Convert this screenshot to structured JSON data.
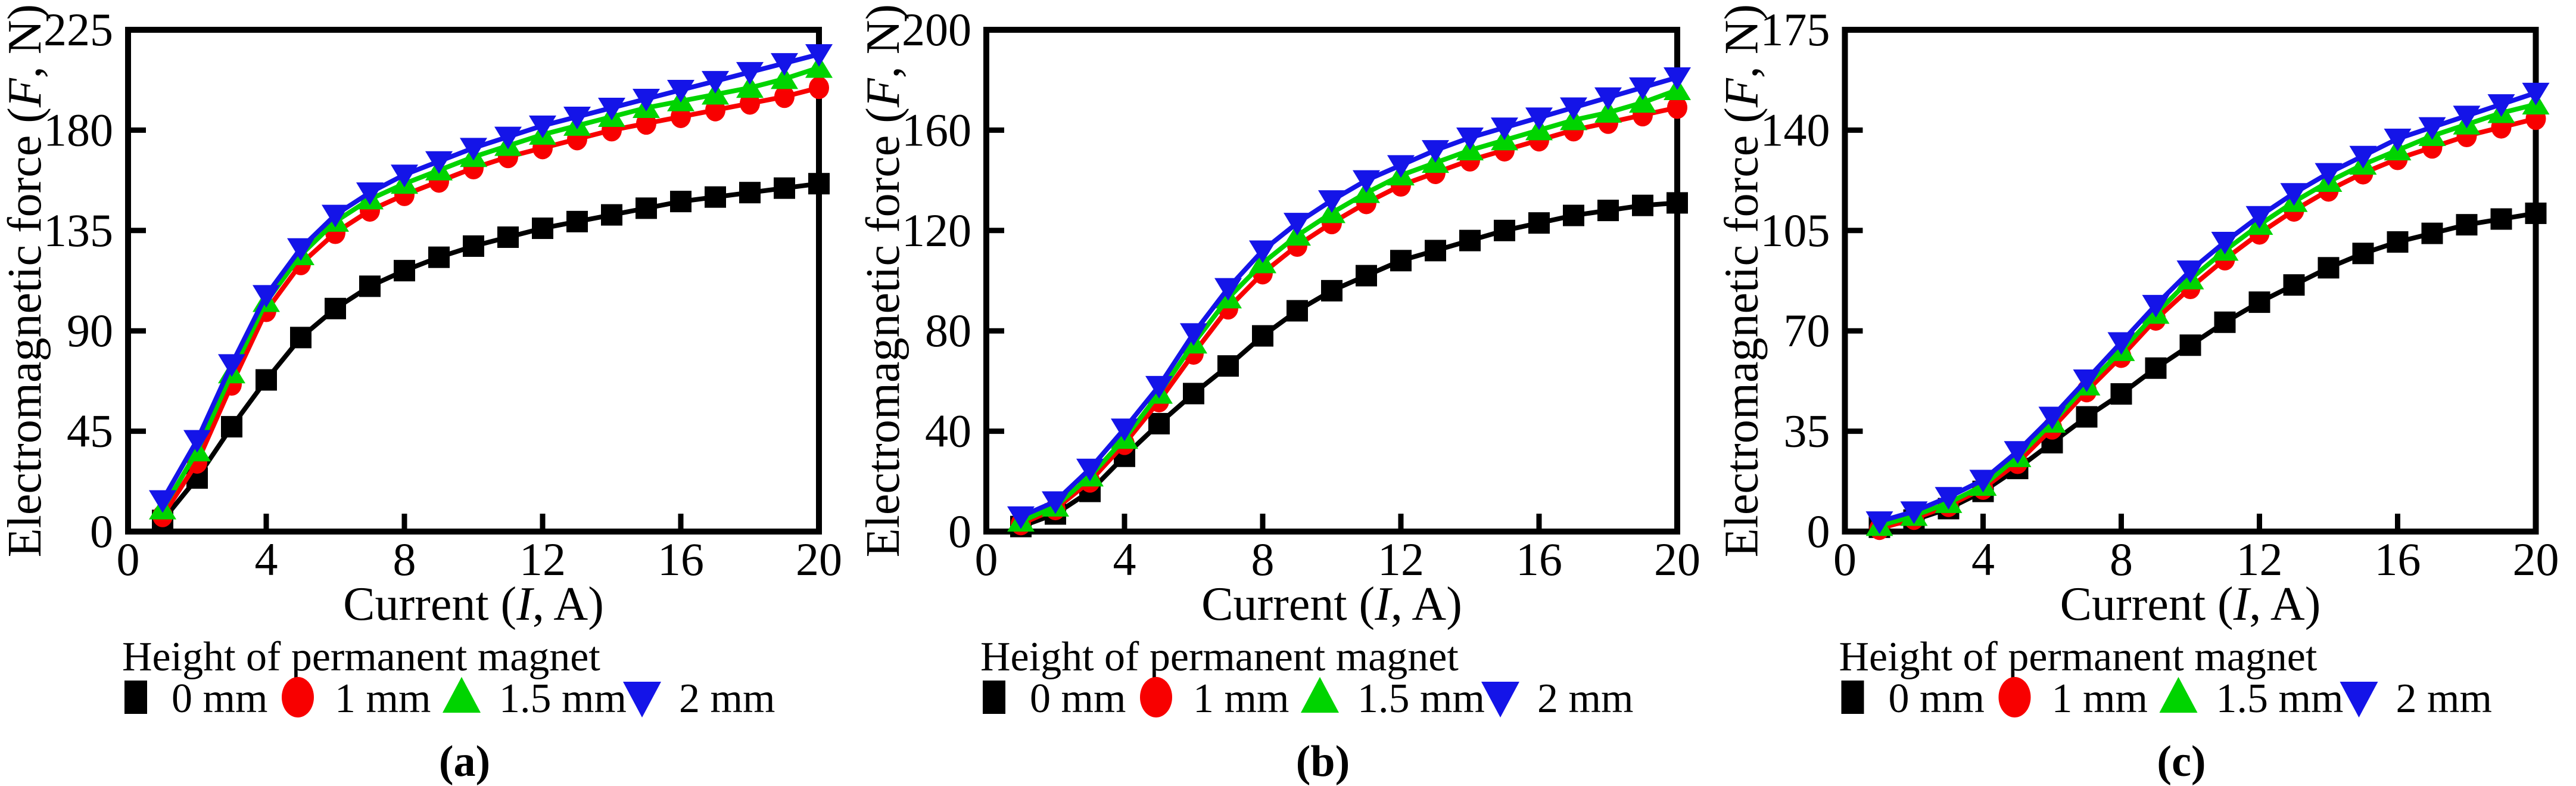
{
  "figure": {
    "ylabel": {
      "prefix": "Electromagnetic force (",
      "italic": "F",
      "suffix": ", N)"
    },
    "xlabel": {
      "prefix": "Current (",
      "italic": "I",
      "suffix": ", A)"
    },
    "legend": {
      "title": "Height of permanent magnet",
      "entries": [
        {
          "label": "0 mm",
          "marker": "square",
          "color": "#000000"
        },
        {
          "label": "1 mm",
          "marker": "circle",
          "color": "#F80000"
        },
        {
          "label": "1.5 mm",
          "marker": "triangle-up",
          "color": "#00D400"
        },
        {
          "label": "2 mm",
          "marker": "triangle-down",
          "color": "#1414E8"
        }
      ]
    },
    "background_color": "#ffffff",
    "axis_color": "#000000"
  },
  "chart_data": [
    {
      "type": "line",
      "caption": "(a)",
      "xlabel": "Current (I, A)",
      "ylabel": "Electromagnetic force (F, N)",
      "xlim": [
        0,
        20
      ],
      "ylim": [
        0,
        225
      ],
      "xticks": [
        0,
        4,
        8,
        12,
        16,
        20
      ],
      "yticks": [
        0,
        45,
        90,
        135,
        180,
        225
      ],
      "grid": false,
      "legend_position": "below",
      "x": [
        1,
        2,
        3,
        4,
        5,
        6,
        7,
        8,
        9,
        10,
        11,
        12,
        13,
        14,
        15,
        16,
        17,
        18,
        19,
        20
      ],
      "series": [
        {
          "name": "0 mm",
          "marker": "square",
          "color": "#000000",
          "values": [
            5,
            24,
            47,
            68,
            87,
            100,
            110,
            117,
            123,
            128,
            132,
            136,
            139,
            142,
            145,
            148,
            150,
            152,
            154,
            156
          ]
        },
        {
          "name": "1 mm",
          "marker": "circle",
          "color": "#F80000",
          "values": [
            7,
            31,
            66,
            99,
            120,
            134,
            144,
            151,
            157,
            163,
            168,
            172,
            176,
            180,
            183,
            186,
            189,
            192,
            195,
            199
          ]
        },
        {
          "name": "1.5 mm",
          "marker": "triangle-up",
          "color": "#00D400",
          "values": [
            10,
            36,
            71,
            103,
            124,
            139,
            149,
            156,
            162,
            168,
            173,
            178,
            182,
            186,
            190,
            193,
            196,
            199,
            203,
            208
          ]
        },
        {
          "name": "2 mm",
          "marker": "triangle-down",
          "color": "#1414E8",
          "values": [
            14,
            41,
            75,
            106,
            127,
            142,
            152,
            160,
            166,
            172,
            177,
            182,
            186,
            190,
            194,
            198,
            202,
            206,
            210,
            214
          ]
        }
      ]
    },
    {
      "type": "line",
      "caption": "(b)",
      "xlabel": "Current (I, A)",
      "ylabel": "Electromagnetic force (F, N)",
      "xlim": [
        0,
        20
      ],
      "ylim": [
        0,
        200
      ],
      "xticks": [
        0,
        4,
        8,
        12,
        16,
        20
      ],
      "yticks": [
        0,
        40,
        80,
        120,
        160,
        200
      ],
      "grid": false,
      "legend_position": "below",
      "x": [
        1,
        2,
        3,
        4,
        5,
        6,
        7,
        8,
        9,
        10,
        11,
        12,
        13,
        14,
        15,
        16,
        17,
        18,
        19,
        20
      ],
      "series": [
        {
          "name": "0 mm",
          "marker": "square",
          "color": "#000000",
          "values": [
            2,
            7,
            16,
            30,
            43,
            55,
            66,
            78,
            88,
            96,
            102,
            108,
            112,
            116,
            120,
            123,
            126,
            128,
            130,
            131
          ]
        },
        {
          "name": "1 mm",
          "marker": "circle",
          "color": "#F80000",
          "values": [
            3,
            9,
            20,
            35,
            52,
            71,
            89,
            103,
            114,
            123,
            131,
            138,
            143,
            148,
            152,
            156,
            160,
            163,
            166,
            169
          ]
        },
        {
          "name": "1.5 mm",
          "marker": "triangle-up",
          "color": "#00D400",
          "values": [
            4,
            10,
            22,
            37,
            55,
            75,
            93,
            107,
            118,
            127,
            135,
            142,
            147,
            152,
            156,
            160,
            164,
            167,
            171,
            176
          ]
        },
        {
          "name": "2 mm",
          "marker": "triangle-down",
          "color": "#1414E8",
          "values": [
            6,
            12,
            25,
            41,
            58,
            79,
            97,
            112,
            123,
            132,
            140,
            146,
            152,
            157,
            161,
            165,
            169,
            173,
            177,
            181
          ]
        }
      ]
    },
    {
      "type": "line",
      "caption": "(c)",
      "xlabel": "Current (I, A)",
      "ylabel": "Electromagnetic force (F, N)",
      "xlim": [
        0,
        20
      ],
      "ylim": [
        0,
        175
      ],
      "xticks": [
        0,
        4,
        8,
        12,
        16,
        20
      ],
      "yticks": [
        0,
        35,
        70,
        105,
        140,
        175
      ],
      "grid": false,
      "legend_position": "below",
      "x": [
        1,
        2,
        3,
        4,
        5,
        6,
        7,
        8,
        9,
        10,
        11,
        12,
        13,
        14,
        15,
        16,
        17,
        18,
        19,
        20
      ],
      "series": [
        {
          "name": "0 mm",
          "marker": "square",
          "color": "#000000",
          "values": [
            1.5,
            4,
            8,
            14,
            22,
            31,
            40,
            48,
            57,
            65,
            73,
            80,
            86,
            92,
            97,
            101,
            104,
            107,
            109,
            111
          ]
        },
        {
          "name": "1 mm",
          "marker": "circle",
          "color": "#F80000",
          "values": [
            1,
            4.5,
            9,
            15,
            24,
            36,
            49,
            61,
            74,
            85,
            95,
            104,
            112,
            119,
            125,
            130,
            134,
            138,
            141,
            144
          ]
        },
        {
          "name": "1.5 mm",
          "marker": "triangle-up",
          "color": "#00D400",
          "values": [
            2,
            5.5,
            10,
            16,
            26,
            38,
            51,
            63,
            76,
            88,
            98,
            107,
            115,
            122,
            128,
            133,
            138,
            142,
            146,
            149
          ]
        },
        {
          "name": "2 mm",
          "marker": "triangle-down",
          "color": "#1414E8",
          "values": [
            3.5,
            7,
            12,
            18,
            28,
            40,
            53,
            66,
            79,
            91,
            101,
            110,
            118,
            125,
            131,
            137,
            141,
            145,
            149,
            153
          ]
        }
      ]
    }
  ]
}
